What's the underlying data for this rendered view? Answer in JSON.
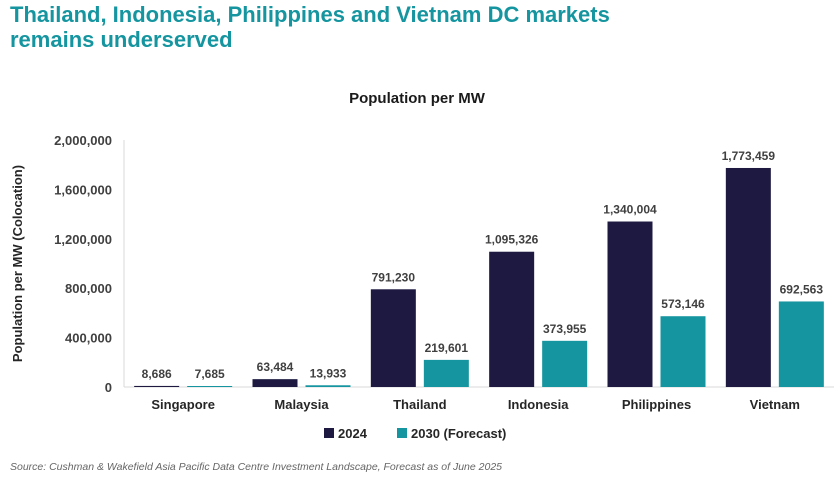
{
  "header": {
    "title_line1": "Thailand, Indonesia, Philippines and Vietnam DC markets",
    "title_line2": "remains underserved"
  },
  "source": "Source: Cushman & Wakefield Asia Pacific Data Centre Investment Landscape, Forecast as of June 2025",
  "colors": {
    "headline": "#15959f",
    "series_2024": "#1d1940",
    "series_2030": "#15959f"
  },
  "chart_data": {
    "type": "bar",
    "title": "Population per MW",
    "xlabel": "",
    "ylabel": "Population per MW (Colocation)",
    "categories": [
      "Singapore",
      "Malaysia",
      "Thailand",
      "Indonesia",
      "Philippines",
      "Vietnam"
    ],
    "series": [
      {
        "name": "2024",
        "values": [
          8686,
          63484,
          791230,
          1095326,
          1340004,
          1773459
        ],
        "labels": [
          "8,686",
          "63,484",
          "791,230",
          "1,095,326",
          "1,340,004",
          "1,773,459"
        ]
      },
      {
        "name": "2030 (Forecast)",
        "values": [
          7685,
          13933,
          219601,
          373955,
          573146,
          692563
        ],
        "labels": [
          "7,685",
          "13,933",
          "219,601",
          "373,955",
          "573,146",
          "692,563"
        ]
      }
    ],
    "ylim": [
      0,
      2000000
    ],
    "yticks": [
      0,
      400000,
      800000,
      1200000,
      1600000,
      2000000
    ],
    "ytick_labels": [
      "0",
      "400,000",
      "800,000",
      "1,200,000",
      "1,600,000",
      "2,000,000"
    ],
    "grid": false,
    "legend": "bottom-center"
  }
}
